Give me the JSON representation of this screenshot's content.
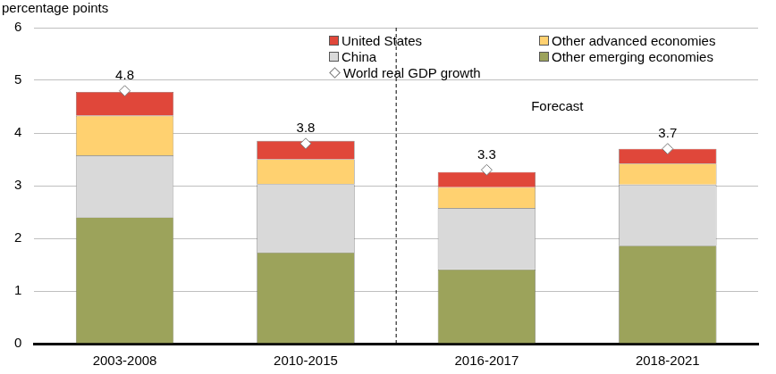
{
  "chart_data": {
    "type": "bar",
    "y_label": "percentage points",
    "categories": [
      "2003-2008",
      "2010-2015",
      "2016-2017",
      "2018-2021"
    ],
    "stacked": true,
    "grid": true,
    "legend": "top right",
    "ylim": [
      0,
      6
    ],
    "yticks": [
      0,
      1,
      2,
      3,
      4,
      5,
      6
    ],
    "annotation": {
      "label": "Forecast",
      "from_category": "2016-2017"
    },
    "series": [
      {
        "name": "Other emerging economies",
        "color": "#9ca35b",
        "values": [
          2.4,
          1.73,
          1.41,
          1.86
        ]
      },
      {
        "name": "China",
        "color": "#d9d9d9",
        "values": [
          1.17,
          1.3,
          1.16,
          1.16
        ]
      },
      {
        "name": "Other advanced economies",
        "color": "#ffd170",
        "values": [
          0.76,
          0.47,
          0.4,
          0.4
        ]
      },
      {
        "name": "United States",
        "color": "#e0473a",
        "values": [
          0.45,
          0.35,
          0.29,
          0.28
        ]
      },
      {
        "name": "World real GDP growth",
        "type": "line",
        "marker": "diamond",
        "color": "#ffffff",
        "data_labels": true,
        "values": [
          4.8,
          3.8,
          3.3,
          3.7
        ]
      }
    ]
  }
}
